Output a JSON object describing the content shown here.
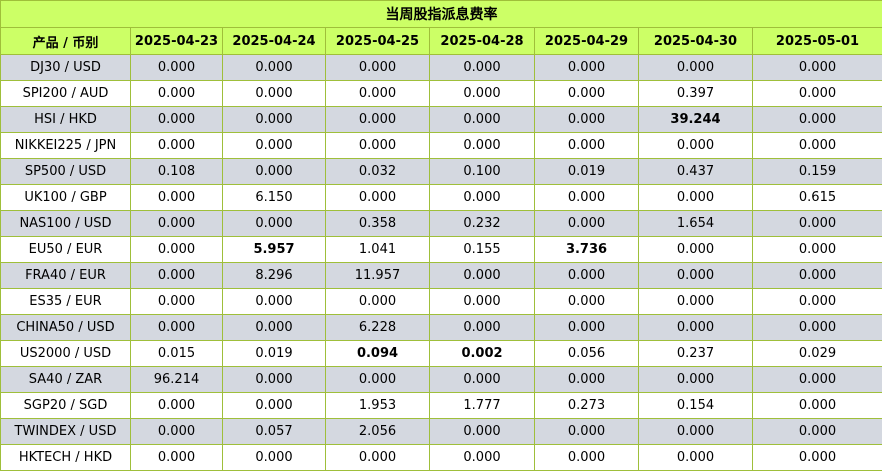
{
  "title": "当周股指派息费率",
  "columns": [
    "产品 / 币别",
    "2025-04-23",
    "2025-04-24",
    "2025-04-25",
    "2025-04-28",
    "2025-04-29",
    "2025-04-30",
    "2025-05-01"
  ],
  "rows": [
    {
      "product": "DJ30 / USD",
      "values": [
        "0.000",
        "0.000",
        "0.000",
        "0.000",
        "0.000",
        "0.000",
        "0.000"
      ],
      "bold": []
    },
    {
      "product": "SPI200 / AUD",
      "values": [
        "0.000",
        "0.000",
        "0.000",
        "0.000",
        "0.000",
        "0.397",
        "0.000"
      ],
      "bold": []
    },
    {
      "product": "HSI / HKD",
      "values": [
        "0.000",
        "0.000",
        "0.000",
        "0.000",
        "0.000",
        "39.244",
        "0.000"
      ],
      "bold": [
        5
      ]
    },
    {
      "product": "NIKKEI225 / JPN",
      "values": [
        "0.000",
        "0.000",
        "0.000",
        "0.000",
        "0.000",
        "0.000",
        "0.000"
      ],
      "bold": []
    },
    {
      "product": "SP500 / USD",
      "values": [
        "0.108",
        "0.000",
        "0.032",
        "0.100",
        "0.019",
        "0.437",
        "0.159"
      ],
      "bold": []
    },
    {
      "product": "UK100 / GBP",
      "values": [
        "0.000",
        "6.150",
        "0.000",
        "0.000",
        "0.000",
        "0.000",
        "0.615"
      ],
      "bold": []
    },
    {
      "product": "NAS100 / USD",
      "values": [
        "0.000",
        "0.000",
        "0.358",
        "0.232",
        "0.000",
        "1.654",
        "0.000"
      ],
      "bold": []
    },
    {
      "product": "EU50 / EUR",
      "values": [
        "0.000",
        "5.957",
        "1.041",
        "0.155",
        "3.736",
        "0.000",
        "0.000"
      ],
      "bold": [
        1,
        4
      ]
    },
    {
      "product": "FRA40 / EUR",
      "values": [
        "0.000",
        "8.296",
        "11.957",
        "0.000",
        "0.000",
        "0.000",
        "0.000"
      ],
      "bold": []
    },
    {
      "product": "ES35 / EUR",
      "values": [
        "0.000",
        "0.000",
        "0.000",
        "0.000",
        "0.000",
        "0.000",
        "0.000"
      ],
      "bold": []
    },
    {
      "product": "CHINA50 / USD",
      "values": [
        "0.000",
        "0.000",
        "6.228",
        "0.000",
        "0.000",
        "0.000",
        "0.000"
      ],
      "bold": []
    },
    {
      "product": "US2000 / USD",
      "values": [
        "0.015",
        "0.019",
        "0.094",
        "0.002",
        "0.056",
        "0.237",
        "0.029"
      ],
      "bold": [
        2,
        3
      ]
    },
    {
      "product": "SA40 / ZAR",
      "values": [
        "96.214",
        "0.000",
        "0.000",
        "0.000",
        "0.000",
        "0.000",
        "0.000"
      ],
      "bold": []
    },
    {
      "product": "SGP20 / SGD",
      "values": [
        "0.000",
        "0.000",
        "1.953",
        "1.777",
        "0.273",
        "0.154",
        "0.000"
      ],
      "bold": []
    },
    {
      "product": "TWINDEX / USD",
      "values": [
        "0.000",
        "0.057",
        "2.056",
        "0.000",
        "0.000",
        "0.000",
        "0.000"
      ],
      "bold": []
    },
    {
      "product": "HKTECH / HKD",
      "values": [
        "0.000",
        "0.000",
        "0.000",
        "0.000",
        "0.000",
        "0.000",
        "0.000"
      ],
      "bold": []
    }
  ],
  "colors": {
    "header_bg": "#ccff66",
    "stripe_bg": "#d4d8e0",
    "border": "#9fbf3a"
  }
}
